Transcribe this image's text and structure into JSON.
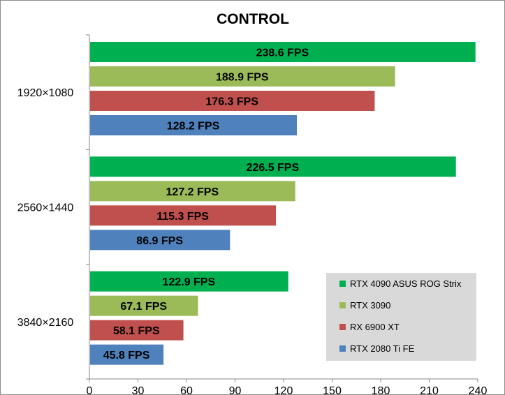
{
  "chart_data": {
    "type": "bar",
    "orientation": "horizontal",
    "title": "CONTROL",
    "xlabel": "",
    "ylabel": "",
    "xlim": [
      0,
      240
    ],
    "x_ticks": [
      0,
      30,
      60,
      90,
      120,
      150,
      180,
      210,
      240
    ],
    "grid": false,
    "legend_position": "bottom-right",
    "value_suffix": " FPS",
    "categories": [
      "1920×1080",
      "2560×1440",
      "3840×2160"
    ],
    "series": [
      {
        "name": "RTX 4090 ASUS ROG Strix",
        "color": "#00b050",
        "values": [
          238.6,
          226.5,
          122.9
        ]
      },
      {
        "name": "RTX 3090",
        "color": "#9bbb59",
        "values": [
          188.9,
          127.2,
          67.1
        ]
      },
      {
        "name": "RX 6900 XT",
        "color": "#c0504d",
        "values": [
          176.3,
          115.3,
          58.1
        ]
      },
      {
        "name": "RTX 2080 Ti FE",
        "color": "#4f81bd",
        "values": [
          128.2,
          86.9,
          45.8
        ]
      }
    ],
    "legend_background": "#d9d9d9"
  }
}
